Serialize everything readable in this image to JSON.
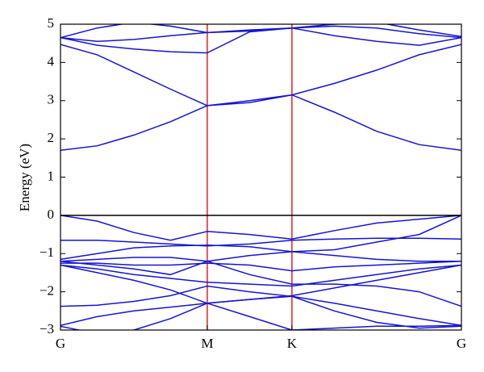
{
  "chart_data": {
    "type": "line",
    "y_label": "Energy (eV)",
    "x": [
      0,
      0.25,
      0.5,
      0.75,
      1,
      1.289,
      1.577,
      1.866,
      2.155,
      2.444,
      2.732
    ],
    "xlim": [
      0,
      2.732
    ],
    "xticks": [
      {
        "value": 0,
        "label": "G"
      },
      {
        "value": 1,
        "label": "M"
      },
      {
        "value": 1.577,
        "label": "K"
      },
      {
        "value": 2.732,
        "label": "G"
      }
    ],
    "ylim": [
      -3,
      5
    ],
    "yticks": [
      {
        "value": -3,
        "label": "−3"
      },
      {
        "value": -2,
        "label": "−2"
      },
      {
        "value": -1,
        "label": "−1"
      },
      0,
      1,
      2,
      3,
      4,
      5
    ],
    "color": "#1414d2",
    "symmetry_line_color": "#e02020",
    "zero_line": true,
    "series": [
      {
        "values": [
          1.7,
          1.82,
          2.1,
          2.45,
          2.87,
          2.95,
          3.15,
          2.7,
          2.2,
          1.85,
          1.7
        ]
      },
      {
        "values": [
          4.47,
          4.2,
          3.75,
          3.3,
          2.87,
          3.0,
          3.15,
          3.45,
          3.8,
          4.2,
          4.47
        ]
      },
      {
        "values": [
          4.65,
          4.45,
          4.35,
          4.28,
          4.25,
          4.8,
          4.9,
          4.7,
          4.55,
          4.45,
          4.65
        ]
      },
      {
        "values": [
          4.65,
          4.9,
          5.05,
          4.95,
          4.78,
          4.85,
          4.9,
          5.0,
          5.05,
          4.85,
          4.68
        ]
      },
      {
        "values": [
          4.65,
          4.55,
          4.6,
          4.7,
          4.78,
          4.82,
          4.9,
          4.95,
          4.9,
          4.75,
          4.65
        ]
      },
      {
        "values": [
          0,
          -0.15,
          -0.45,
          -0.65,
          -0.42,
          -0.5,
          -0.62,
          -0.4,
          -0.2,
          -0.1,
          0
        ]
      },
      {
        "values": [
          -0.65,
          -0.65,
          -0.7,
          -0.75,
          -0.8,
          -0.75,
          -0.65,
          -0.62,
          -0.6,
          -0.6,
          -0.62
        ]
      },
      {
        "values": [
          -1.15,
          -1.0,
          -0.85,
          -0.8,
          -0.78,
          -0.82,
          -0.95,
          -0.9,
          -0.7,
          -0.5,
          0
        ]
      },
      {
        "values": [
          -1.2,
          -1.15,
          -1.1,
          -1.1,
          -1.2,
          -1.05,
          -0.95,
          -1.05,
          -1.15,
          -1.2,
          -1.2
        ]
      },
      {
        "values": [
          -1.25,
          -1.25,
          -1.3,
          -1.3,
          -1.25,
          -1.3,
          -1.45,
          -1.35,
          -1.3,
          -1.25,
          -1.2
        ]
      },
      {
        "values": [
          -1.3,
          -1.4,
          -1.55,
          -1.65,
          -1.75,
          -1.8,
          -1.85,
          -1.7,
          -1.55,
          -1.4,
          -1.3
        ]
      },
      {
        "values": [
          -1.3,
          -1.5,
          -1.7,
          -1.95,
          -2.3,
          -2.2,
          -2.1,
          -1.9,
          -1.7,
          -1.5,
          -1.3
        ]
      },
      {
        "values": [
          -2.88,
          -2.65,
          -2.5,
          -2.4,
          -2.3,
          -2.2,
          -2.12,
          -2.3,
          -2.5,
          -2.7,
          -2.88
        ]
      },
      {
        "values": [
          -2.38,
          -2.35,
          -2.25,
          -2.1,
          -1.85,
          -2.0,
          -2.12,
          -2.5,
          -2.8,
          -2.95,
          -2.9
        ]
      },
      {
        "values": [
          -2.9,
          -3.1,
          -3.0,
          -2.7,
          -2.3,
          -2.65,
          -3.0,
          -2.95,
          -2.9,
          -2.9,
          -2.88
        ]
      },
      {
        "values": [
          -1.2,
          -1.3,
          -1.4,
          -1.55,
          -1.2,
          -1.55,
          -1.8,
          -1.8,
          -1.85,
          -2.0,
          -2.38
        ]
      }
    ]
  }
}
